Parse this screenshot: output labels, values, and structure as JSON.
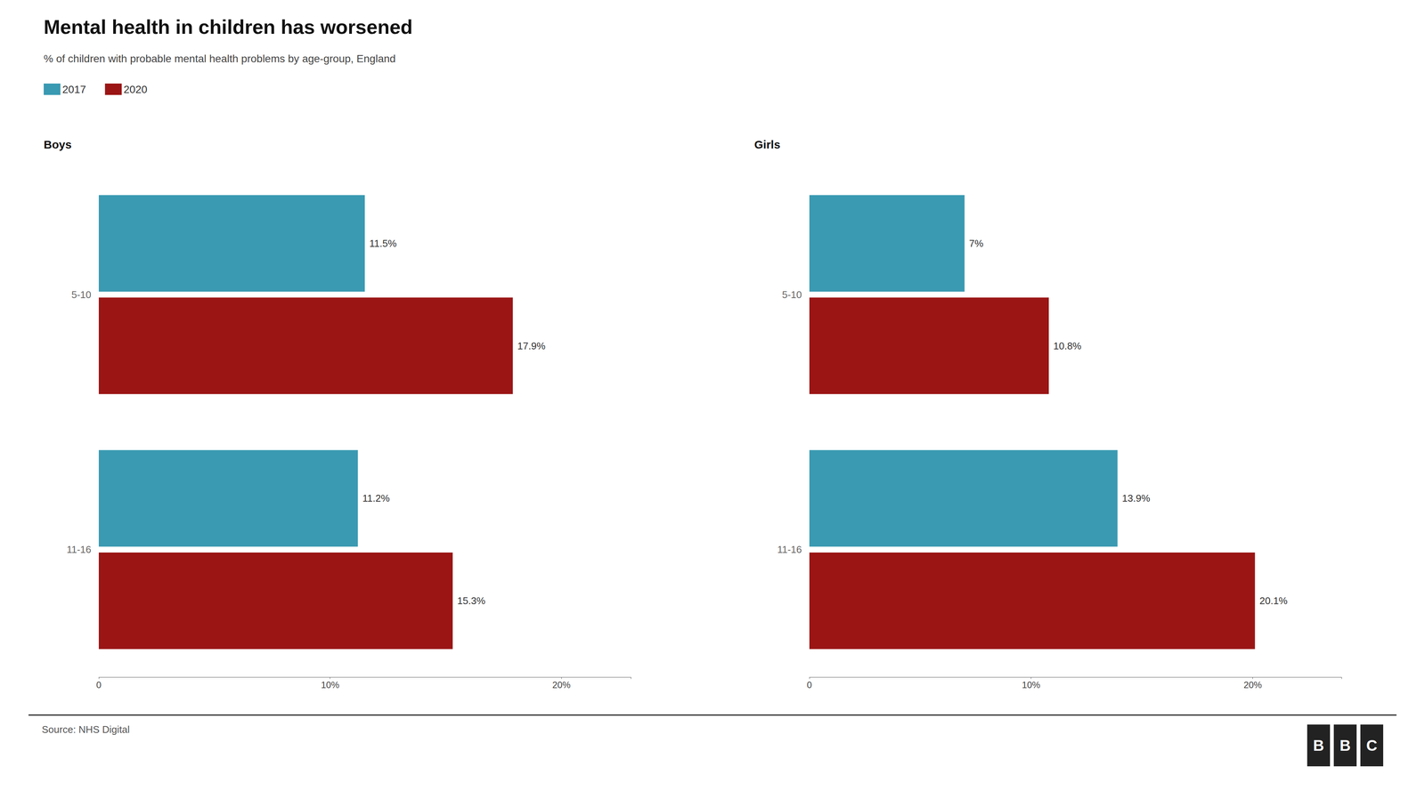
{
  "title": "Mental health in children has worsened",
  "subtitle": "% of children with probable mental health problems by age-group, England",
  "source": "Source: NHS Digital",
  "logo": [
    "B",
    "B",
    "C"
  ],
  "chart_data": [
    {
      "type": "bar",
      "orientation": "horizontal",
      "title": "Boys",
      "categories": [
        "5-10",
        "11-16"
      ],
      "series": [
        {
          "name": "2017",
          "color": "#3a9ab2",
          "values": [
            11.5,
            11.2
          ],
          "value_labels": [
            "11.5%",
            "11.2%"
          ]
        },
        {
          "name": "2020",
          "color": "#9b1515",
          "values": [
            17.9,
            15.3
          ],
          "value_labels": [
            "17.9%",
            "15.3%"
          ]
        }
      ],
      "xlim": [
        0,
        23
      ],
      "xticks": [
        0,
        {
          "value": 10,
          "label": "10%"
        },
        {
          "value": 20,
          "label": "20%"
        }
      ],
      "data_labels": true,
      "grid": false,
      "legend": "top left"
    },
    {
      "type": "bar",
      "orientation": "horizontal",
      "title": "Girls",
      "categories": [
        "5-10",
        "11-16"
      ],
      "series": [
        {
          "name": "2017",
          "color": "#3a9ab2",
          "values": [
            7.0,
            13.9
          ],
          "value_labels": [
            "7%",
            "13.9%"
          ]
        },
        {
          "name": "2020",
          "color": "#9b1515",
          "values": [
            10.8,
            20.1
          ],
          "value_labels": [
            "10.8%",
            "20.1%"
          ]
        }
      ],
      "xlim": [
        0,
        24
      ],
      "xticks": [
        0,
        {
          "value": 10,
          "label": "10%"
        },
        {
          "value": 20,
          "label": "20%"
        }
      ],
      "data_labels": true,
      "grid": false
    }
  ]
}
